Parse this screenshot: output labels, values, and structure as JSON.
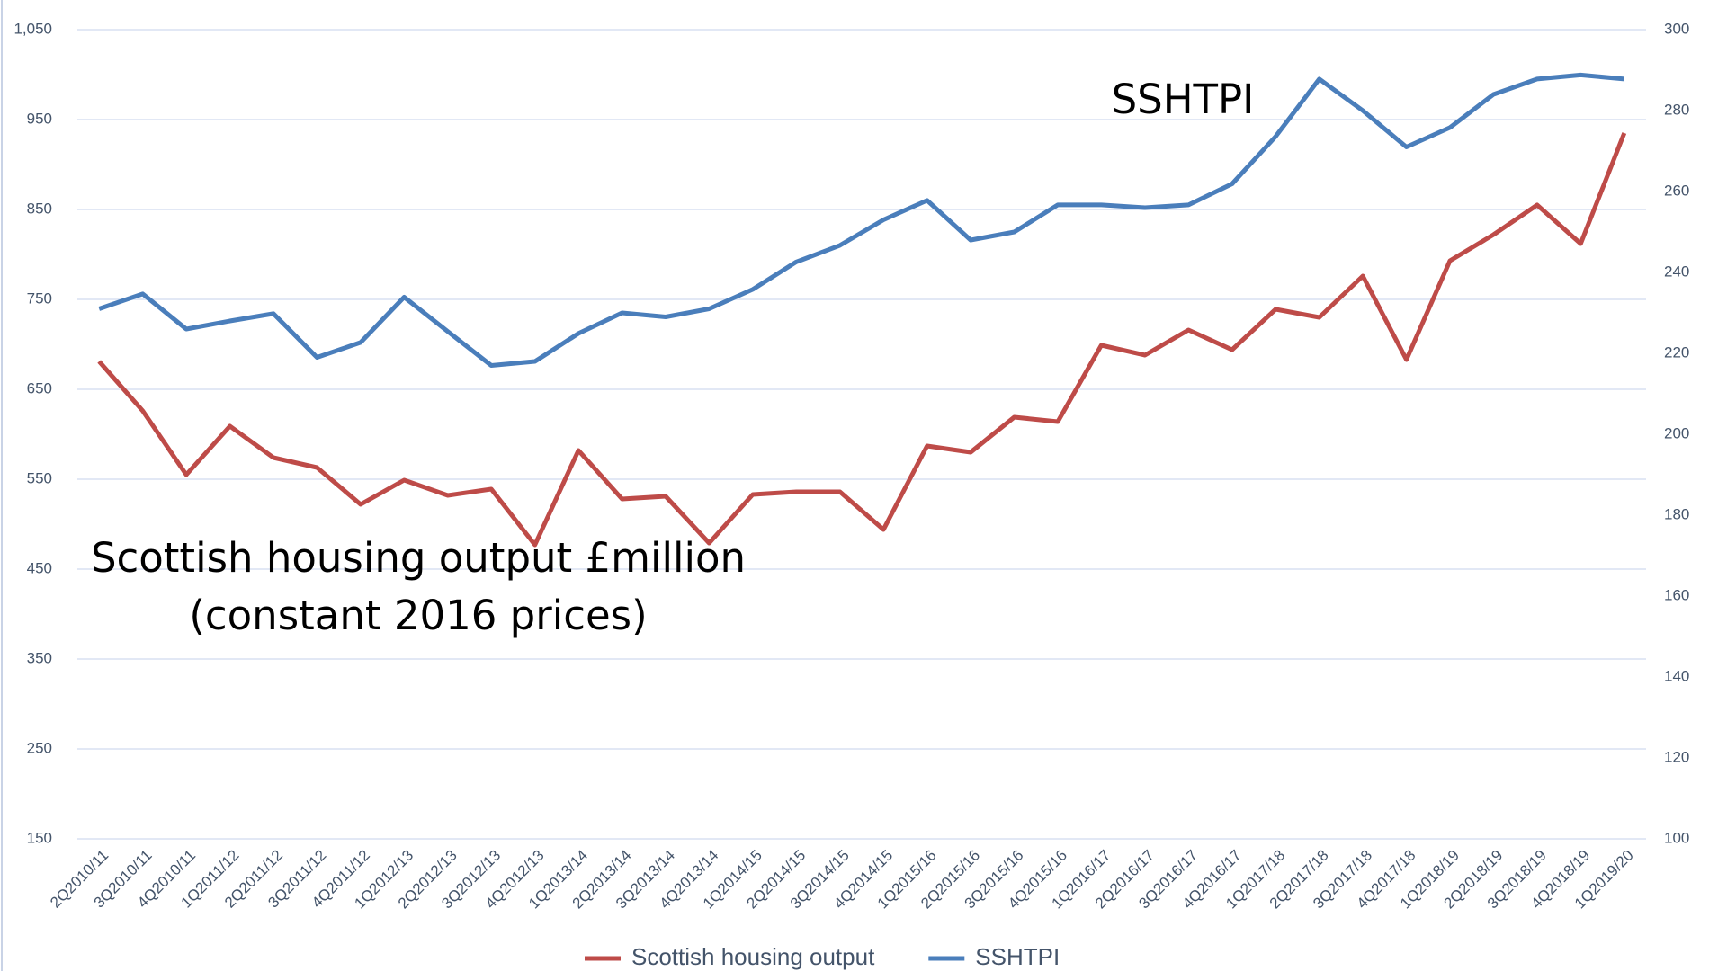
{
  "chart_data": {
    "type": "line",
    "categories": [
      "2Q2010/11",
      "3Q2010/11",
      "4Q2010/11",
      "1Q2011/12",
      "2Q2011/12",
      "3Q2011/12",
      "4Q2011/12",
      "1Q2012/13",
      "2Q2012/13",
      "3Q2012/13",
      "4Q2012/13",
      "1Q2013/14",
      "2Q2013/14",
      "3Q2013/14",
      "4Q2013/14",
      "1Q2014/15",
      "2Q2014/15",
      "3Q2014/15",
      "4Q2014/15",
      "1Q2015/16",
      "2Q2015/16",
      "3Q2015/16",
      "4Q2015/16",
      "1Q2016/17",
      "2Q2016/17",
      "3Q2016/17",
      "4Q2016/17",
      "1Q2017/18",
      "2Q2017/18",
      "3Q2017/18",
      "4Q2017/18",
      "1Q2018/19",
      "2Q2018/19",
      "3Q2018/19",
      "4Q2018/19",
      "1Q2019/20"
    ],
    "series": [
      {
        "name": "Scottish housing output",
        "color": "#be4b48",
        "axis": "y",
        "values": [
          681,
          626,
          555,
          609,
          574,
          563,
          522,
          549,
          532,
          539,
          477,
          582,
          528,
          531,
          479,
          533,
          536,
          536,
          494,
          587,
          580,
          619,
          614,
          699,
          688,
          716,
          694,
          739,
          730,
          776,
          683,
          793,
          822,
          855,
          812,
          935
        ]
      },
      {
        "name": "SSHTPI",
        "color": "#4a7ebb",
        "axis": "y2",
        "values": [
          231,
          234.7,
          226,
          228,
          229.8,
          219,
          222.7,
          233.9,
          225.4,
          217,
          218,
          224.9,
          230,
          229,
          231,
          235.8,
          242.6,
          246.7,
          253,
          257.8,
          248,
          250,
          256.7,
          256.7,
          256,
          256.7,
          261.9,
          273.6,
          287.8,
          280,
          271,
          275.8,
          284,
          287.8,
          288.8,
          287.8
        ]
      }
    ],
    "ylim": [
      150,
      1050
    ],
    "yticks": [
      150,
      250,
      350,
      450,
      550,
      650,
      750,
      850,
      950,
      {
        "value": 1050,
        "label": "1,050"
      }
    ],
    "y2lim": [
      100,
      300
    ],
    "y2ticks": [
      100,
      120,
      140,
      160,
      180,
      200,
      220,
      240,
      260,
      280,
      300
    ],
    "grid": true,
    "annotations": [
      "SSHTPI",
      "Scottish housing output £million",
      "(constant 2016 prices)"
    ]
  }
}
